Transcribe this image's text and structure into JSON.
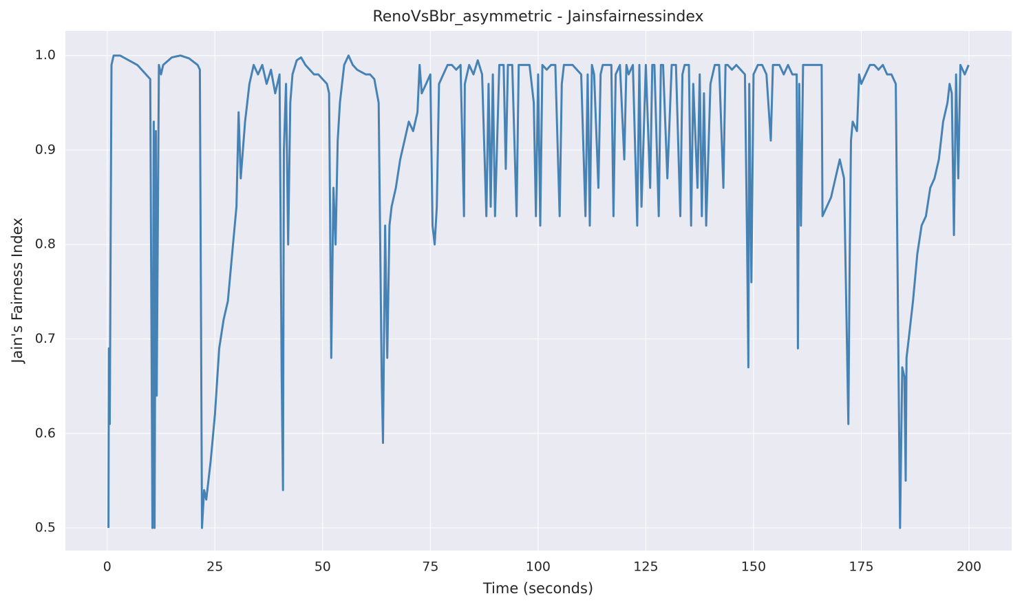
{
  "chart_data": {
    "type": "line",
    "title": "RenoVsBbr_asymmetric - Jainsfairnessindex",
    "x_label": "Time (seconds)",
    "y_label": "Jain's Fairness Index",
    "color": "#4682b4",
    "grid": true,
    "xlim": [
      -9.7,
      209.9
    ],
    "ylim": [
      0.476,
      1.026
    ],
    "xticks": [
      0,
      25,
      50,
      75,
      100,
      125,
      150,
      175,
      200
    ],
    "yticks": [
      0.5,
      0.6,
      0.7,
      0.8,
      0.9,
      {
        "value": 1,
        "label": "1.0"
      }
    ],
    "x": [
      0.3,
      0.4,
      0.6,
      1,
      1.5,
      3,
      5,
      7,
      9,
      10,
      10.5,
      10.8,
      11,
      11.3,
      11.5,
      12,
      12.5,
      13,
      15,
      17,
      19,
      21,
      21.5,
      22,
      22.5,
      23,
      24,
      25,
      26,
      27,
      28,
      29,
      30,
      30.5,
      31,
      32,
      33,
      34,
      35,
      36,
      37,
      38,
      39,
      40,
      40.5,
      40.8,
      41,
      41.5,
      42,
      42.5,
      43,
      44,
      45,
      46,
      47,
      48,
      49,
      50,
      51,
      51.5,
      52,
      52.5,
      53,
      53.5,
      54,
      55,
      56,
      57,
      58,
      60,
      61,
      62,
      63,
      63.7,
      64,
      64.5,
      65,
      65.5,
      66,
      67,
      68,
      69,
      70,
      71,
      72,
      72.5,
      73,
      74,
      75,
      75.5,
      76,
      76.5,
      77,
      78,
      79,
      80,
      81,
      82,
      82.8,
      83,
      84,
      85,
      86,
      87,
      88,
      88.5,
      89,
      89.5,
      90,
      91,
      92,
      92.5,
      93,
      94,
      95,
      95.5,
      96,
      97,
      98,
      99,
      99.5,
      100,
      100.5,
      101,
      102,
      103,
      104,
      105,
      105.5,
      106,
      107,
      108,
      109,
      110,
      111,
      111.5,
      112,
      112.5,
      113,
      114,
      114.5,
      115,
      116,
      117,
      117.5,
      118,
      119,
      120,
      120.5,
      121,
      122,
      123,
      123.5,
      124,
      125,
      126,
      126.5,
      127,
      128,
      128.5,
      129,
      130,
      131,
      132,
      133,
      133.5,
      134,
      135,
      135.5,
      136,
      137,
      137.5,
      138,
      138.5,
      139,
      140,
      141,
      142,
      143,
      143.5,
      144,
      145,
      146,
      147,
      148,
      148.5,
      148.8,
      149,
      149.5,
      150,
      151,
      152,
      153,
      154,
      154.5,
      155,
      156,
      157,
      158,
      159,
      160,
      160.3,
      160.6,
      161,
      161.5,
      162,
      163,
      164,
      165,
      165.8,
      166,
      167,
      168,
      169,
      170,
      171,
      172,
      172.3,
      172.6,
      173,
      174,
      174.5,
      175,
      176,
      177,
      178,
      179,
      180,
      181,
      182,
      183,
      184,
      184.5,
      185,
      185.3,
      185.5,
      186,
      187,
      188,
      189,
      190,
      191,
      192,
      193,
      194,
      195,
      195.5,
      196,
      196.5,
      197,
      197.5,
      198,
      199,
      199.9
    ],
    "values": [
      0.5,
      0.69,
      0.61,
      0.99,
      1.0,
      1.0,
      0.995,
      0.99,
      0.98,
      0.975,
      0.5,
      0.93,
      0.5,
      0.92,
      0.64,
      0.99,
      0.98,
      0.99,
      0.998,
      1.0,
      0.997,
      0.99,
      0.985,
      0.5,
      0.54,
      0.53,
      0.57,
      0.62,
      0.69,
      0.72,
      0.74,
      0.79,
      0.84,
      0.94,
      0.87,
      0.93,
      0.97,
      0.99,
      0.98,
      0.99,
      0.97,
      0.985,
      0.96,
      0.98,
      0.66,
      0.54,
      0.9,
      0.97,
      0.8,
      0.95,
      0.98,
      0.995,
      0.998,
      0.99,
      0.985,
      0.98,
      0.98,
      0.975,
      0.97,
      0.96,
      0.68,
      0.86,
      0.8,
      0.91,
      0.95,
      0.99,
      1.0,
      0.99,
      0.985,
      0.98,
      0.98,
      0.975,
      0.95,
      0.66,
      0.59,
      0.82,
      0.68,
      0.82,
      0.84,
      0.86,
      0.89,
      0.91,
      0.93,
      0.92,
      0.94,
      0.99,
      0.96,
      0.97,
      0.98,
      0.82,
      0.8,
      0.84,
      0.97,
      0.98,
      0.99,
      0.99,
      0.985,
      0.99,
      0.83,
      0.97,
      0.99,
      0.98,
      0.995,
      0.98,
      0.83,
      0.97,
      0.84,
      0.98,
      0.83,
      0.99,
      0.99,
      0.88,
      0.99,
      0.99,
      0.83,
      0.99,
      0.99,
      0.99,
      0.99,
      0.95,
      0.83,
      0.98,
      0.82,
      0.99,
      0.985,
      0.99,
      0.99,
      0.83,
      0.97,
      0.99,
      0.99,
      0.99,
      0.985,
      0.98,
      0.83,
      0.98,
      0.82,
      0.99,
      0.98,
      0.86,
      0.98,
      0.99,
      0.99,
      0.99,
      0.83,
      0.98,
      0.99,
      0.89,
      0.99,
      0.98,
      0.99,
      0.82,
      0.99,
      0.84,
      0.99,
      0.86,
      0.99,
      0.99,
      0.83,
      0.99,
      0.99,
      0.87,
      0.99,
      0.99,
      0.83,
      0.98,
      0.99,
      0.99,
      0.82,
      0.97,
      0.86,
      0.98,
      0.83,
      0.96,
      0.82,
      0.97,
      0.99,
      0.99,
      0.86,
      0.99,
      0.99,
      0.985,
      0.99,
      0.985,
      0.98,
      0.8,
      0.67,
      0.97,
      0.76,
      0.98,
      0.99,
      0.99,
      0.98,
      0.91,
      0.99,
      0.99,
      0.99,
      0.98,
      0.99,
      0.98,
      0.98,
      0.69,
      0.97,
      0.82,
      0.99,
      0.99,
      0.99,
      0.99,
      0.99,
      0.99,
      0.83,
      0.84,
      0.85,
      0.87,
      0.89,
      0.87,
      0.61,
      0.78,
      0.91,
      0.93,
      0.92,
      0.98,
      0.97,
      0.98,
      0.99,
      0.99,
      0.985,
      0.99,
      0.98,
      0.98,
      0.97,
      0.5,
      0.67,
      0.66,
      0.55,
      0.68,
      0.7,
      0.74,
      0.79,
      0.82,
      0.83,
      0.86,
      0.87,
      0.89,
      0.93,
      0.95,
      0.97,
      0.96,
      0.81,
      0.98,
      0.87,
      0.99,
      0.98,
      0.99
    ]
  }
}
